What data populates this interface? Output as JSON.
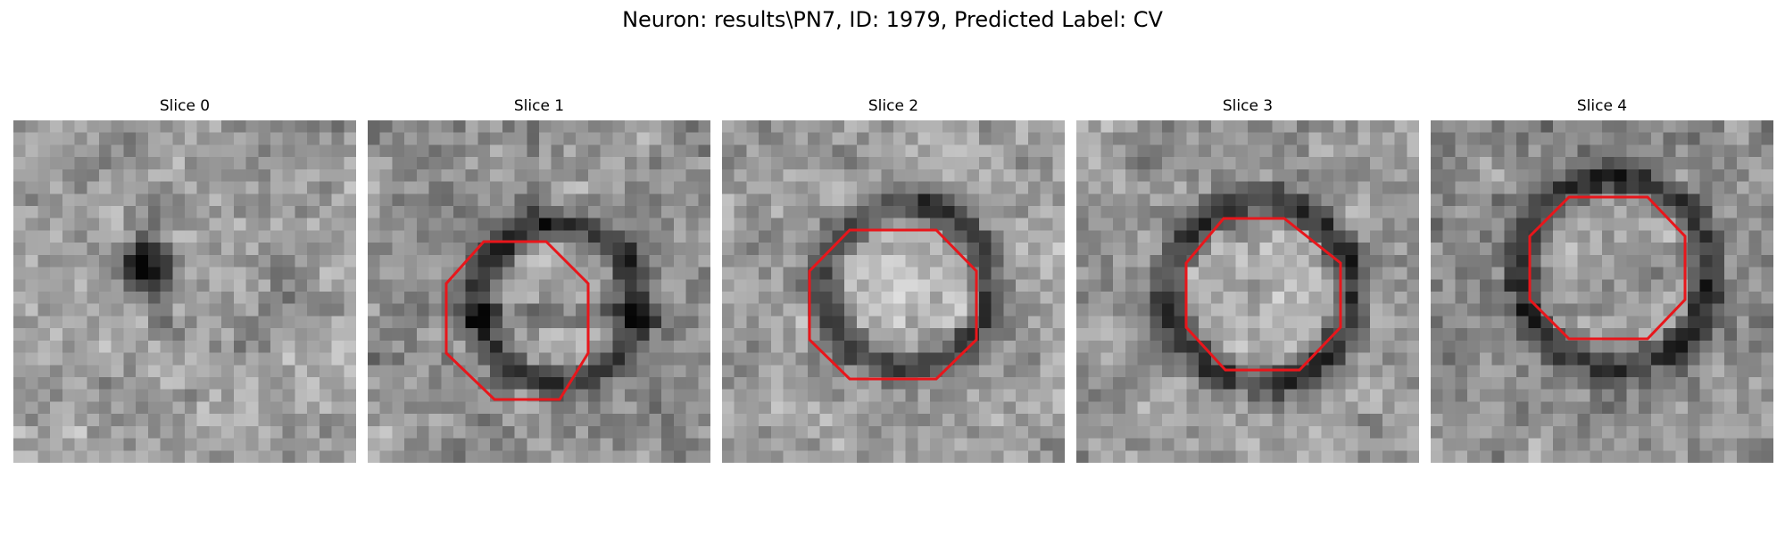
{
  "figure": {
    "title": "Neuron: results\\PN7, ID: 1979, Predicted Label: CV"
  },
  "panels": [
    {
      "title": "Slice 0",
      "outline": false,
      "seed": 11
    },
    {
      "title": "Slice 1",
      "outline": true,
      "seed": 23
    },
    {
      "title": "Slice 2",
      "outline": true,
      "seed": 37
    },
    {
      "title": "Slice 3",
      "outline": true,
      "seed": 51
    },
    {
      "title": "Slice 4",
      "outline": true,
      "seed": 67
    }
  ],
  "colors": {
    "outline": "#e8161b"
  }
}
